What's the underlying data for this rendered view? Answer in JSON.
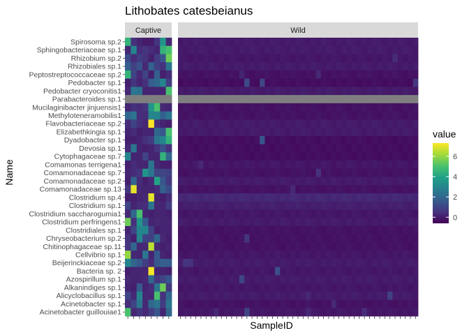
{
  "chart_data": {
    "type": "heatmap",
    "title": "Lithobates catesbeianus",
    "xlabel": "SampleID",
    "ylabel": "Name",
    "facets": [
      "Captive",
      "Wild"
    ],
    "x_tick_labels_shown": false,
    "legend": {
      "title": "value",
      "placement": "right",
      "ticks": [
        0,
        2,
        4,
        6
      ],
      "range": [
        -0.6,
        7.3
      ]
    },
    "colormap": [
      "#440154",
      "#46327e",
      "#365c8d",
      "#277f8e",
      "#1fa187",
      "#4ac16d",
      "#a0da39",
      "#fde725"
    ],
    "na_color": "#7f7f7f",
    "rows": [
      "Spirosoma sp.2",
      "Sphingobacteriaceae sp.1",
      "Rhizobium sp.2",
      "Rhizobiales sp.1",
      "Peptostreptococcaceae sp.2",
      "Pedobacter sp.1",
      "Pedobacter cryoconitis1",
      "Parabacteroides sp.1",
      "Mucilaginibacter jinjuensis1",
      "Methyloteneramobilis1",
      "Flavobacteriaceae sp.2",
      "Elizabethkingia sp.1",
      "Dyadobacter sp.1",
      "Devosia sp.1",
      "Cytophagaceae sp.7",
      "Comamonas terrigena1",
      "Comamonadaceae sp.7",
      "Comamonadaceae sp.2",
      "Comamonadaceae sp.13",
      "Clostridium sp.4",
      "Clostridium sp.1",
      "Clostridium saccharogumia1",
      "Clostridium perfringens1",
      "Clostridiales sp.1",
      "Chryseobacterium sp.2",
      "Chitinophagaceae sp.11",
      "Cellvibrio sp.1",
      "Beijerinckiaceae sp.2",
      "Bacteria  sp. 2",
      "Azospirillum sp.1",
      "Alkanindiges sp.1",
      "Alicyclobacillus sp.1",
      "Acinetobacter sp.1",
      "Acinetobacter guillouiae1"
    ],
    "na_row": "Parabacteroides sp.1",
    "captive_values": [
      [
        4.5,
        0.5,
        0.2,
        0.0,
        0.0,
        0.6,
        3.5,
        0.3
      ],
      [
        0.3,
        3.0,
        0.4,
        0.6,
        0.4,
        0.2,
        4.5,
        5.0
      ],
      [
        1.2,
        0.4,
        0.8,
        0.5,
        0.1,
        0.8,
        1.5,
        5.5
      ],
      [
        1.7,
        0.9,
        1.4,
        0.3,
        1.8,
        0.9,
        0.5,
        2.5
      ],
      [
        4.5,
        1.0,
        0.3,
        1.0,
        0.1,
        1.8,
        0.1,
        0.4
      ],
      [
        0.1,
        0.6,
        0.2,
        0.5,
        1.7,
        2.0,
        3.0,
        0.8
      ],
      [
        0.3,
        2.5,
        2.4,
        0.2,
        0.2,
        0.2,
        0.2,
        5.0
      ],
      [
        null,
        null,
        null,
        null,
        null,
        null,
        null,
        null
      ],
      [
        0.2,
        0.5,
        0.4,
        0.6,
        3.5,
        5.0,
        0.3,
        0.2
      ],
      [
        2.0,
        2.4,
        0.4,
        0.4,
        3.0,
        3.0,
        1.8,
        2.5
      ],
      [
        0.4,
        1.0,
        0.5,
        0.3,
        7.3,
        0.5,
        0.2,
        0.1
      ],
      [
        0.2,
        0.4,
        0.1,
        0.2,
        0.2,
        2.0,
        1.5,
        5.0
      ],
      [
        0.1,
        0.1,
        0.2,
        0.5,
        0.8,
        2.5,
        3.0,
        4.5
      ],
      [
        0.3,
        2.5,
        0.2,
        0.1,
        0.2,
        0.6,
        1.3,
        0.5
      ],
      [
        3.0,
        0.2,
        0.2,
        1.0,
        0.2,
        0.2,
        4.5,
        2.0
      ],
      [
        0.1,
        0.4,
        0.2,
        0.2,
        2.5,
        0.3,
        0.1,
        0.1
      ],
      [
        0.2,
        0.4,
        0.6,
        3.5,
        2.5,
        1.0,
        1.0,
        0.9
      ],
      [
        0.1,
        2.0,
        0.4,
        0.1,
        0.3,
        4.0,
        1.5,
        0.7
      ],
      [
        0.6,
        7.0,
        0.3,
        0.2,
        0.2,
        0.4,
        1.8,
        1.2
      ],
      [
        0.1,
        0.1,
        0.2,
        0.3,
        7.0,
        0.2,
        0.1,
        0.4
      ],
      [
        1.0,
        0.2,
        0.4,
        0.4,
        2.5,
        0.3,
        0.2,
        0.8
      ],
      [
        0.3,
        2.0,
        5.0,
        0.2,
        0.1,
        0.2,
        0.2,
        0.1
      ],
      [
        5.5,
        0.5,
        3.5,
        1.6,
        0.2,
        0.3,
        0.2,
        0.2
      ],
      [
        0.2,
        1.0,
        3.0,
        3.0,
        0.9,
        0.1,
        0.2,
        0.2
      ],
      [
        0.5,
        0.1,
        3.0,
        1.0,
        0.9,
        2.0,
        0.3,
        0.1
      ],
      [
        0.6,
        2.0,
        0.3,
        0.3,
        6.5,
        0.3,
        0.1,
        0.2
      ],
      [
        6.0,
        0.3,
        0.2,
        2.5,
        0.2,
        1.6,
        0.2,
        0.1
      ],
      [
        3.0,
        2.0,
        1.5,
        0.8,
        0.4,
        1.5,
        1.8,
        1.7
      ],
      [
        0.1,
        0.2,
        0.2,
        0.2,
        7.2,
        0.2,
        0.2,
        0.1
      ],
      [
        0.3,
        0.2,
        0.2,
        0.3,
        2.0,
        0.6,
        1.0,
        1.5
      ],
      [
        0.2,
        0.1,
        1.6,
        0.2,
        0.4,
        2.5,
        5.5,
        0.7
      ],
      [
        1.0,
        0.3,
        3.0,
        0.3,
        0.3,
        5.0,
        0.5,
        2.0
      ],
      [
        0.4,
        1.0,
        2.5,
        0.3,
        2.0,
        2.5,
        0.8,
        2.5
      ],
      [
        5.0,
        0.3,
        0.6,
        0.3,
        0.8,
        1.5,
        0.2,
        2.0
      ]
    ],
    "wild_sample_count": 47,
    "wild_base_values": [
      0.0,
      0.0,
      -0.1,
      0.0,
      -0.2,
      -0.3,
      0.0,
      null,
      -0.2,
      -0.2,
      0.0,
      0.0,
      -0.3,
      -0.3,
      -0.3,
      -0.1,
      -0.2,
      0.0,
      -0.2,
      0.3,
      0.1,
      -0.1,
      0.0,
      -0.2,
      -0.2,
      -0.2,
      -0.1,
      0.0,
      -0.1,
      0.0,
      -0.1,
      0.0,
      -0.2,
      -0.1
    ],
    "wild_highlights": [
      {
        "row": 2,
        "col": 42,
        "value": 0.4
      },
      {
        "row": 4,
        "col": 27,
        "value": 0.3
      },
      {
        "row": 4,
        "col": 12,
        "value": 0.2
      },
      {
        "row": 5,
        "col": 13,
        "value": 1.2
      },
      {
        "row": 5,
        "col": 16,
        "value": 1.0
      },
      {
        "row": 5,
        "col": 46,
        "value": 0.6
      },
      {
        "row": 12,
        "col": 16,
        "value": 1.5
      },
      {
        "row": 15,
        "col": 4,
        "value": 0.3
      },
      {
        "row": 16,
        "col": 27,
        "value": 0.5
      },
      {
        "row": 18,
        "col": 22,
        "value": 0.3
      },
      {
        "row": 24,
        "col": 13,
        "value": 0.6
      },
      {
        "row": 27,
        "col": 1,
        "value": 0.6
      },
      {
        "row": 27,
        "col": 2,
        "value": 0.5
      },
      {
        "row": 28,
        "col": 19,
        "value": 1.3
      },
      {
        "row": 29,
        "col": 12,
        "value": 1.0
      },
      {
        "row": 31,
        "col": 41,
        "value": 0.9
      },
      {
        "row": 31,
        "col": 25,
        "value": 0.3
      },
      {
        "row": 33,
        "col": 13,
        "value": 1.0
      },
      {
        "row": 33,
        "col": 36,
        "value": 0.4
      },
      {
        "row": 33,
        "col": 7,
        "value": 0.3
      },
      {
        "row": 33,
        "col": 25,
        "value": 0.3
      },
      {
        "row": 32,
        "col": 30,
        "value": 0.3
      }
    ]
  }
}
